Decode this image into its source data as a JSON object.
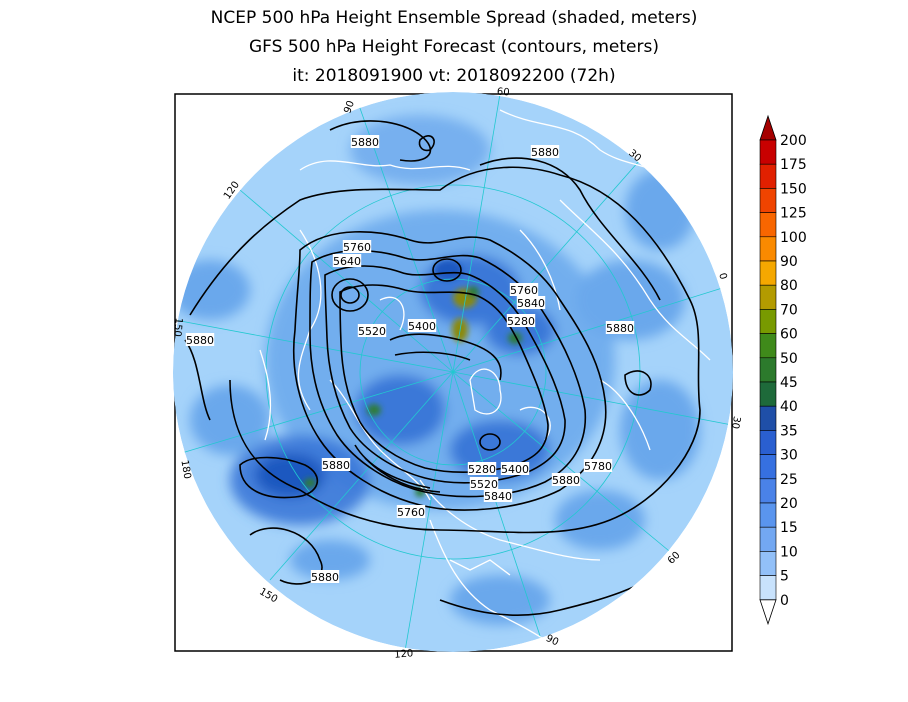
{
  "titles": {
    "line1": "NCEP 500 hPa Height Ensemble Spread (shaded, meters)",
    "line2": "GFS 500 hPa Height Forecast (contours, meters)",
    "line3": "it: 2018091900      vt: 2018092200 (72h)"
  },
  "colorbar": {
    "levels": [
      "200",
      "175",
      "150",
      "125",
      "100",
      "90",
      "80",
      "70",
      "60",
      "50",
      "45",
      "40",
      "35",
      "30",
      "25",
      "20",
      "15",
      "10",
      "5",
      "0"
    ],
    "colors": [
      "#a50000",
      "#c80000",
      "#e12000",
      "#f04400",
      "#f86600",
      "#fa8a00",
      "#f5a800",
      "#b39b00",
      "#789a00",
      "#3f8a1a",
      "#2c7a2c",
      "#1e6a3a",
      "#1f4fa8",
      "#2a5fd0",
      "#3670e0",
      "#4a82e8",
      "#5a95ee",
      "#73a8f2",
      "#92c0f8",
      "#c8e2fc"
    ]
  },
  "contour_labels": [
    "5880",
    "5880",
    "5760",
    "5640",
    "5760",
    "5840",
    "5280",
    "5880",
    "5520",
    "5400",
    "5880",
    "5280",
    "5400",
    "5780",
    "5520",
    "5880",
    "5840",
    "5760",
    "5880",
    "5880"
  ],
  "longitude_labels": [
    "90",
    "60",
    "30",
    "0",
    "30",
    "60",
    "90",
    "120",
    "150",
    "180",
    "150",
    "120"
  ],
  "map_colors": {
    "ocean_light": "#a5d3fa",
    "spread_mid": "#6aa8ec",
    "spread_high": "#3a78d8",
    "spread_peak": "#1f58c0",
    "anomaly_green": "#2e7d3a",
    "anomaly_olive": "#8a8a10",
    "coast": "#ffffff",
    "graticule": "#22c8d0",
    "contour": "#000000"
  }
}
